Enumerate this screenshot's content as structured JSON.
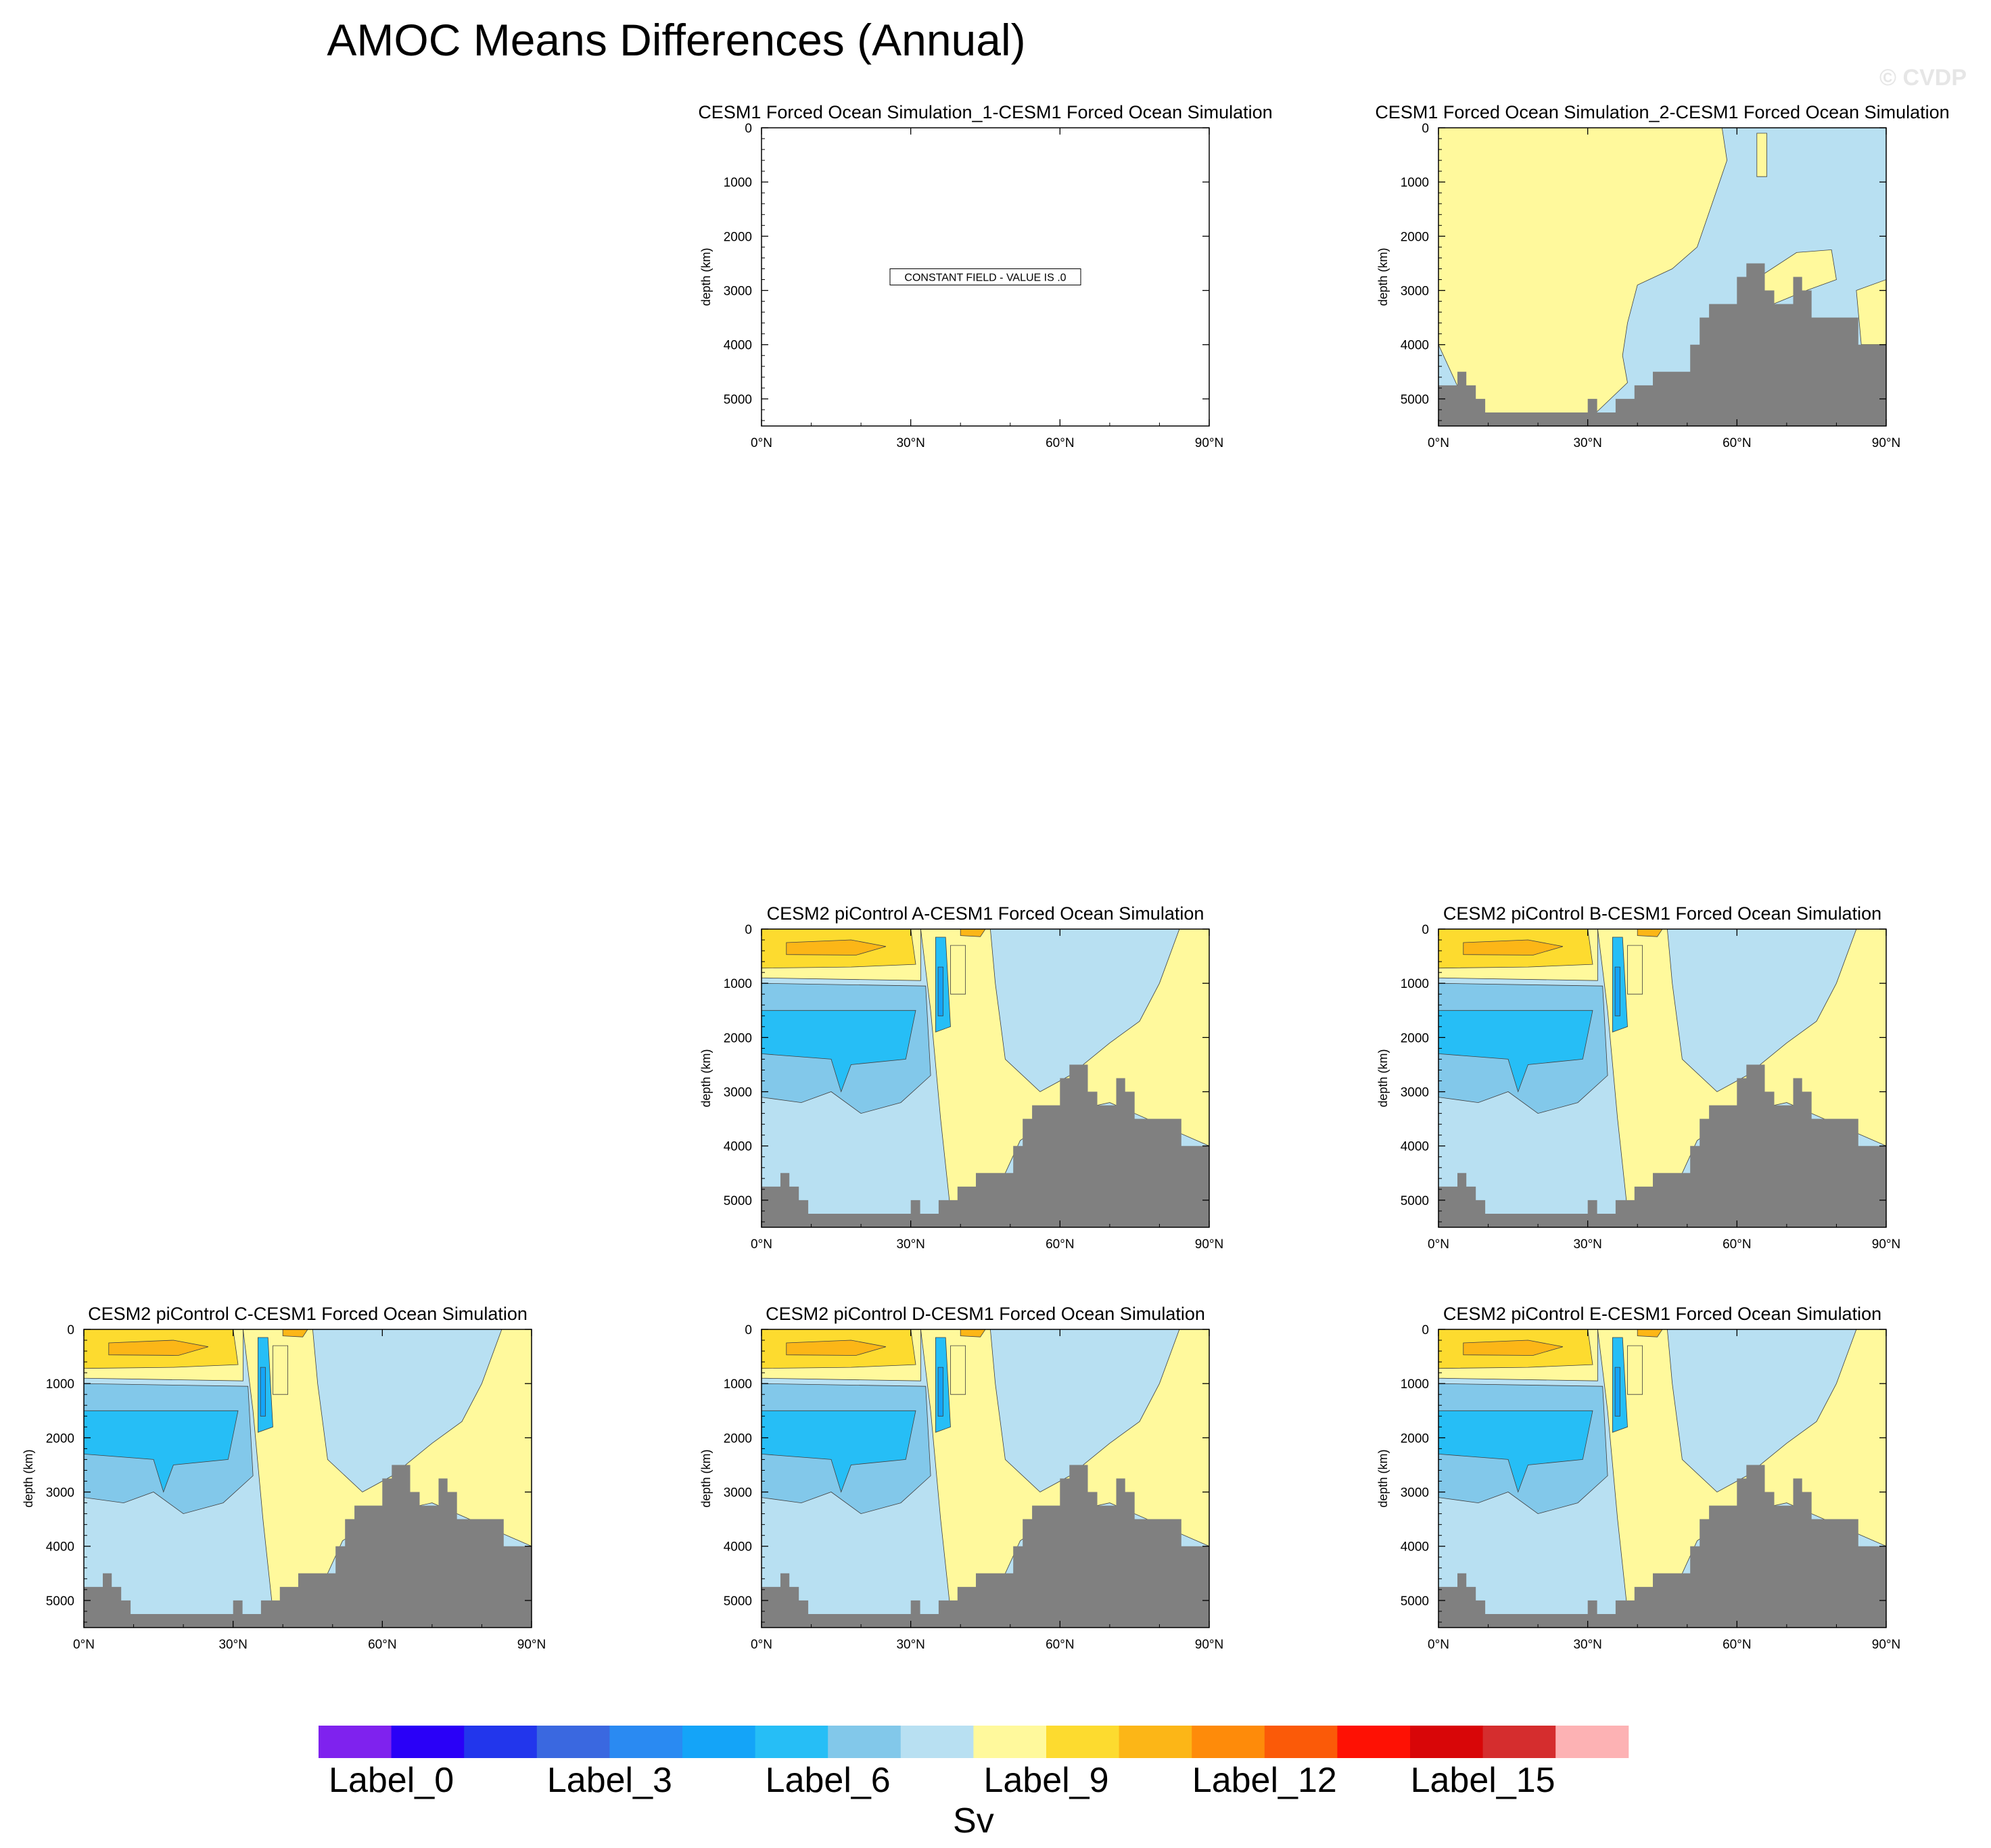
{
  "page": {
    "title": "AMOC Means Differences (Annual)",
    "watermark": "© CVDP"
  },
  "colors": {
    "land": "#808080",
    "contour_line": "#404040",
    "frame": "#000000",
    "levels": [
      "#7f22ee",
      "#2a00f7",
      "#2236ec",
      "#3a68e0",
      "#2a8af2",
      "#14a4f8",
      "#26bef6",
      "#82c8ea",
      "#b8e0f2",
      "#fff99c",
      "#fddb2f",
      "#fcb617",
      "#fe8b0a",
      "#fb5a08",
      "#fe1104",
      "#d80608",
      "#d52d2e",
      "#fdb2b4"
    ]
  },
  "chart_data": [
    {
      "type": "contour",
      "title": "CESM1 Forced Ocean Simulation_1-CESM1 Forced Ocean Simulation",
      "ylabel": "depth (km)",
      "xlim": [
        0,
        90
      ],
      "ylim": [
        5500,
        0
      ],
      "xticks": [
        "0°N",
        "30°N",
        "60°N",
        "90°N"
      ],
      "yticks": [
        "0",
        "1000",
        "2000",
        "3000",
        "4000",
        "5000"
      ],
      "constant_field": "CONSTANT FIELD - VALUE IS .0"
    },
    {
      "type": "contour",
      "title": "CESM1 Forced Ocean Simulation_2-CESM1 Forced Ocean Simulation",
      "ylabel": "depth (km)",
      "xlim": [
        0,
        90
      ],
      "ylim": [
        5500,
        0
      ],
      "xticks": [
        "0°N",
        "30°N",
        "60°N",
        "90°N"
      ],
      "yticks": [
        "0",
        "1000",
        "2000",
        "3000",
        "4000",
        "5000"
      ],
      "pattern": "sim2"
    },
    {
      "type": "contour",
      "title": "CESM2 piControl A-CESM1 Forced Ocean Simulation",
      "ylabel": "depth (km)",
      "xlim": [
        0,
        90
      ],
      "ylim": [
        5500,
        0
      ],
      "xticks": [
        "0°N",
        "30°N",
        "60°N",
        "90°N"
      ],
      "yticks": [
        "0",
        "1000",
        "2000",
        "3000",
        "4000",
        "5000"
      ],
      "pattern": "picontrol"
    },
    {
      "type": "contour",
      "title": "CESM2 piControl B-CESM1 Forced Ocean Simulation",
      "ylabel": "depth (km)",
      "xlim": [
        0,
        90
      ],
      "ylim": [
        5500,
        0
      ],
      "xticks": [
        "0°N",
        "30°N",
        "60°N",
        "90°N"
      ],
      "yticks": [
        "0",
        "1000",
        "2000",
        "3000",
        "4000",
        "5000"
      ],
      "pattern": "picontrol"
    },
    {
      "type": "contour",
      "title": "CESM2 piControl C-CESM1 Forced Ocean Simulation",
      "ylabel": "depth (km)",
      "xlim": [
        0,
        90
      ],
      "ylim": [
        5500,
        0
      ],
      "xticks": [
        "0°N",
        "30°N",
        "60°N",
        "90°N"
      ],
      "yticks": [
        "0",
        "1000",
        "2000",
        "3000",
        "4000",
        "5000"
      ],
      "pattern": "picontrol"
    },
    {
      "type": "contour",
      "title": "CESM2 piControl D-CESM1 Forced Ocean Simulation",
      "ylabel": "depth (km)",
      "xlim": [
        0,
        90
      ],
      "ylim": [
        5500,
        0
      ],
      "xticks": [
        "0°N",
        "30°N",
        "60°N",
        "90°N"
      ],
      "yticks": [
        "0",
        "1000",
        "2000",
        "3000",
        "4000",
        "5000"
      ],
      "pattern": "picontrol"
    },
    {
      "type": "contour",
      "title": "CESM2 piControl E-CESM1 Forced Ocean Simulation",
      "ylabel": "depth (km)",
      "xlim": [
        0,
        90
      ],
      "ylim": [
        5500,
        0
      ],
      "xticks": [
        "0°N",
        "30°N",
        "60°N",
        "90°N"
      ],
      "yticks": [
        "0",
        "1000",
        "2000",
        "3000",
        "4000",
        "5000"
      ],
      "pattern": "picontrol"
    }
  ],
  "bathymetry": [
    [
      0,
      4750
    ],
    [
      3.8,
      4750
    ],
    [
      3.8,
      4500
    ],
    [
      5.6,
      4500
    ],
    [
      5.6,
      4750
    ],
    [
      7.5,
      4750
    ],
    [
      7.5,
      5000
    ],
    [
      9.4,
      5000
    ],
    [
      9.4,
      5250
    ],
    [
      30,
      5250
    ],
    [
      30,
      5000
    ],
    [
      31.9,
      5000
    ],
    [
      31.9,
      5250
    ],
    [
      35.6,
      5250
    ],
    [
      35.6,
      5000
    ],
    [
      39.4,
      5000
    ],
    [
      39.4,
      4750
    ],
    [
      43.1,
      4750
    ],
    [
      43.1,
      4500
    ],
    [
      50.6,
      4500
    ],
    [
      50.6,
      4000
    ],
    [
      52.5,
      4000
    ],
    [
      52.5,
      3500
    ],
    [
      54.4,
      3500
    ],
    [
      54.4,
      3250
    ],
    [
      60,
      3250
    ],
    [
      60,
      2750
    ],
    [
      61.9,
      2750
    ],
    [
      61.9,
      2500
    ],
    [
      65.6,
      2500
    ],
    [
      65.6,
      3000
    ],
    [
      67.5,
      3000
    ],
    [
      67.5,
      3250
    ],
    [
      71.3,
      3250
    ],
    [
      71.3,
      2750
    ],
    [
      73.1,
      2750
    ],
    [
      73.1,
      3000
    ],
    [
      75,
      3000
    ],
    [
      75,
      3500
    ],
    [
      84.4,
      3500
    ],
    [
      84.4,
      4000
    ],
    [
      90,
      4000
    ]
  ],
  "colorbar": {
    "labels": [
      "Label_0",
      "Label_3",
      "Label_6",
      "Label_9",
      "Label_12",
      "Label_15"
    ],
    "units": "Sv"
  }
}
